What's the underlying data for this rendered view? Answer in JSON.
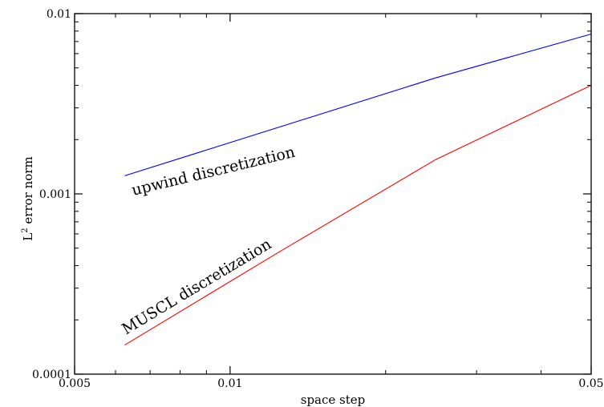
{
  "chart_data": {
    "type": "line",
    "xscale": "log",
    "yscale": "log",
    "xlim": [
      0.005,
      0.05
    ],
    "ylim": [
      0.0001,
      0.01
    ],
    "xlabel": "space step",
    "ylabel_main": "L",
    "ylabel_sup": "2",
    "ylabel_rest": " error norm",
    "xticks": [
      {
        "value": 0.005,
        "label": "0.005"
      },
      {
        "value": 0.01,
        "label": "0.01"
      },
      {
        "value": 0.05,
        "label": "0.05"
      }
    ],
    "yticks": [
      {
        "value": 0.0001,
        "label": "0.0001"
      },
      {
        "value": 0.001,
        "label": "0.001"
      },
      {
        "value": 0.01,
        "label": "0.01"
      }
    ],
    "grid": false,
    "series": [
      {
        "name": "upwind discretization",
        "color": "#0000ff",
        "x": [
          0.00625,
          0.025,
          0.05
        ],
        "y": [
          0.00126,
          0.0044,
          0.0077
        ]
      },
      {
        "name": "MUSCL discretization",
        "color": "#ff0000",
        "x": [
          0.00625,
          0.0125,
          0.025,
          0.05
        ],
        "y": [
          0.000145,
          0.00048,
          0.00155,
          0.004
        ]
      }
    ]
  }
}
